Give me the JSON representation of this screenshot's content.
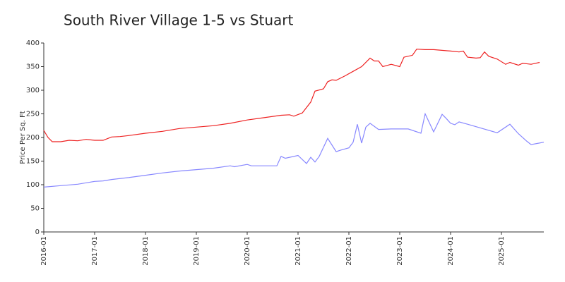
{
  "chart_data": {
    "type": "line",
    "title": "South River Village 1-5 vs Stuart",
    "ylabel": "Price Per Sq. Ft",
    "xlim": [
      "2016-01",
      "2025-11"
    ],
    "xticks": [
      "2016-01",
      "2017-01",
      "2018-01",
      "2019-01",
      "2020-01",
      "2021-01",
      "2022-01",
      "2023-01",
      "2024-01",
      "2025-01"
    ],
    "ylim": [
      0,
      400
    ],
    "yticks": [
      0,
      50,
      100,
      150,
      200,
      250,
      300,
      350,
      400
    ],
    "series": [
      {
        "color": "#ee2222",
        "x": [
          "2016-01",
          "2016-02",
          "2016-03",
          "2016-05",
          "2016-07",
          "2016-09",
          "2016-11",
          "2017-01",
          "2017-03",
          "2017-05",
          "2017-07",
          "2017-09",
          "2018-01",
          "2018-05",
          "2018-09",
          "2019-01",
          "2019-05",
          "2019-09",
          "2020-01",
          "2020-05",
          "2020-09",
          "2020-11",
          "2020-12",
          "2021-02",
          "2021-04",
          "2021-05",
          "2021-07",
          "2021-08",
          "2021-09",
          "2021-10",
          "2021-12",
          "2022-02",
          "2022-04",
          "2022-06",
          "2022-07",
          "2022-08",
          "2022-09",
          "2022-11",
          "2023-01",
          "2023-02",
          "2023-04",
          "2023-05",
          "2023-07",
          "2023-09",
          "2024-01",
          "2024-03",
          "2024-04",
          "2024-05",
          "2024-07",
          "2024-08",
          "2024-09",
          "2024-10",
          "2024-12",
          "2025-02",
          "2025-03",
          "2025-05",
          "2025-06",
          "2025-08",
          "2025-10"
        ],
        "values": [
          215,
          200,
          191,
          191,
          194,
          193,
          196,
          194,
          194,
          201,
          202,
          204,
          209,
          213,
          219,
          222,
          225,
          230,
          237,
          242,
          247,
          248,
          245,
          252,
          275,
          298,
          303,
          318,
          322,
          321,
          330,
          340,
          350,
          368,
          362,
          362,
          350,
          355,
          350,
          370,
          374,
          387,
          386,
          386,
          383,
          381,
          383,
          370,
          368,
          369,
          381,
          372,
          366,
          355,
          359,
          353,
          357,
          355,
          359
        ]
      },
      {
        "color": "#8888ff",
        "x": [
          "2016-01",
          "2016-05",
          "2016-09",
          "2017-01",
          "2017-03",
          "2017-05",
          "2017-09",
          "2018-01",
          "2018-05",
          "2018-09",
          "2019-01",
          "2019-05",
          "2019-09",
          "2019-10",
          "2020-01",
          "2020-02",
          "2020-08",
          "2020-09",
          "2020-10",
          "2021-01",
          "2021-03",
          "2021-04",
          "2021-05",
          "2021-06",
          "2021-08",
          "2021-10",
          "2021-11",
          "2022-01",
          "2022-02",
          "2022-03",
          "2022-04",
          "2022-05",
          "2022-06",
          "2022-08",
          "2022-11",
          "2023-03",
          "2023-06",
          "2023-07",
          "2023-09",
          "2023-11",
          "2023-12",
          "2024-01",
          "2024-02",
          "2024-03",
          "2024-05",
          "2024-12",
          "2025-03",
          "2025-05",
          "2025-07",
          "2025-08",
          "2025-11"
        ],
        "values": [
          95,
          98,
          101,
          107,
          108,
          111,
          115,
          120,
          125,
          129,
          132,
          135,
          140,
          138,
          143,
          140,
          140,
          160,
          156,
          162,
          145,
          158,
          148,
          160,
          198,
          170,
          173,
          178,
          190,
          228,
          188,
          222,
          230,
          217,
          218,
          218,
          209,
          250,
          212,
          249,
          240,
          230,
          227,
          233,
          228,
          210,
          228,
          208,
          192,
          185,
          190
        ]
      }
    ]
  }
}
